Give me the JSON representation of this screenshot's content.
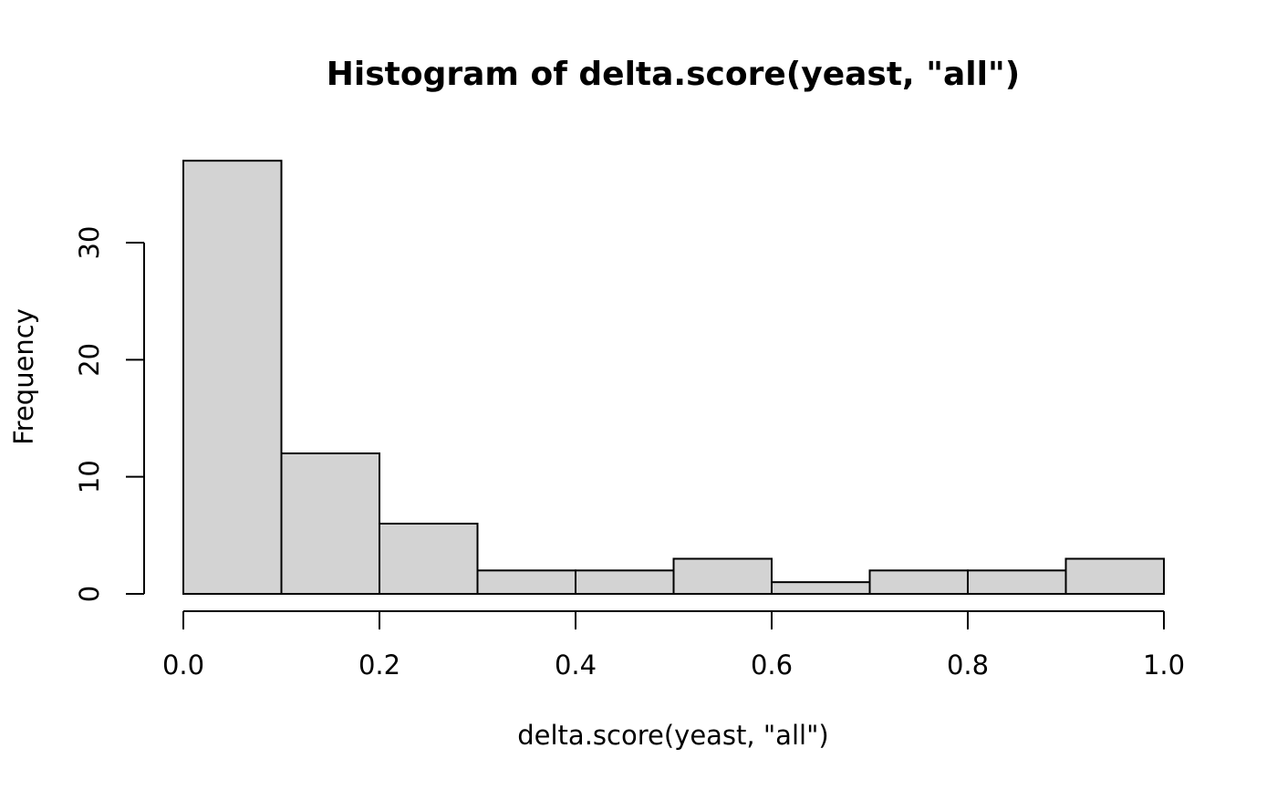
{
  "chart_data": {
    "type": "bar",
    "title": "Histogram of delta.score(yeast, \"all\")",
    "xlabel": "delta.score(yeast, \"all\")",
    "ylabel": "Frequency",
    "bins": [
      {
        "start": 0.0,
        "end": 0.1,
        "count": 37
      },
      {
        "start": 0.1,
        "end": 0.2,
        "count": 12
      },
      {
        "start": 0.2,
        "end": 0.3,
        "count": 6
      },
      {
        "start": 0.3,
        "end": 0.4,
        "count": 2
      },
      {
        "start": 0.4,
        "end": 0.5,
        "count": 2
      },
      {
        "start": 0.5,
        "end": 0.6,
        "count": 3
      },
      {
        "start": 0.6,
        "end": 0.7,
        "count": 1
      },
      {
        "start": 0.7,
        "end": 0.8,
        "count": 2
      },
      {
        "start": 0.8,
        "end": 0.9,
        "count": 2
      },
      {
        "start": 0.9,
        "end": 1.0,
        "count": 3
      }
    ],
    "xlim": [
      0.0,
      1.0
    ],
    "ylim": [
      0,
      37
    ],
    "x_ticks": [
      "0.0",
      "0.2",
      "0.4",
      "0.6",
      "0.8",
      "1.0"
    ],
    "y_ticks": [
      "0",
      "10",
      "20",
      "30"
    ],
    "bar_fill": "#d3d3d3",
    "bar_stroke": "#000000",
    "grid": false,
    "legend": "none"
  }
}
